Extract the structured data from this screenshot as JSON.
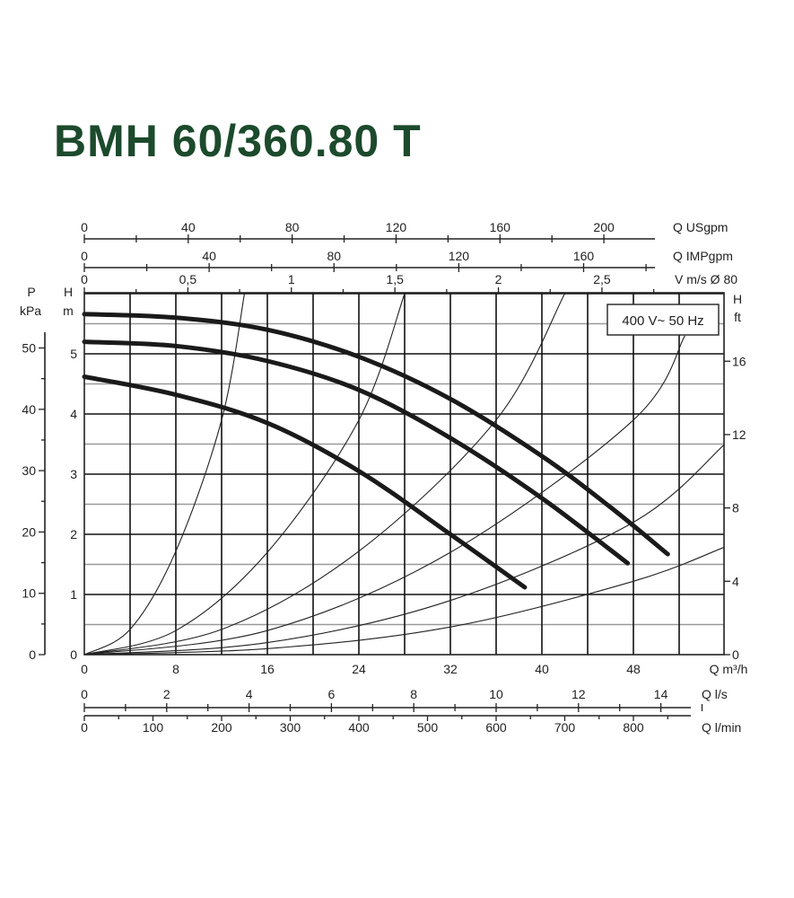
{
  "title": "BMH 60/360.80 T",
  "chart_data": {
    "type": "line",
    "title": "BMH 60/360.80 T",
    "annotation": "400 V~ 50 Hz",
    "x": {
      "label": "Q m³/h",
      "range": [
        0,
        55
      ],
      "ticks": [
        "0",
        "8",
        "16",
        "24",
        "32",
        "40",
        "48"
      ],
      "tick_values": [
        0,
        8,
        16,
        24,
        32,
        40,
        48
      ]
    },
    "y": {
      "label_top": "H",
      "label_bottom": "m",
      "range": [
        0,
        6
      ],
      "ticks": [
        "0",
        "1",
        "2",
        "3",
        "4",
        "5"
      ],
      "tick_values": [
        0,
        1,
        2,
        3,
        4,
        5
      ]
    },
    "pressure_axis": {
      "label_top": "P",
      "label_bottom": "kPa",
      "ticks": [
        "0",
        "10",
        "20",
        "30",
        "40",
        "50"
      ],
      "tick_values": [
        0,
        10,
        20,
        30,
        40,
        50
      ]
    },
    "feet_axis": {
      "label_top": "H",
      "label_bottom": "ft",
      "ticks": [
        "0",
        "4",
        "8",
        "12",
        "16"
      ],
      "tick_values": [
        0,
        4,
        8,
        12,
        16
      ]
    },
    "usgpm_axis": {
      "label": "Q USgpm",
      "ticks": [
        "0",
        "40",
        "80",
        "120",
        "160",
        "200"
      ],
      "tick_values": [
        0,
        40,
        80,
        120,
        160,
        200
      ]
    },
    "impgpm_axis": {
      "label": "Q IMPgpm",
      "ticks": [
        "0",
        "40",
        "80",
        "120",
        "160"
      ],
      "tick_values": [
        0,
        40,
        80,
        120,
        160
      ]
    },
    "velocity_axis": {
      "label": "V m/s Ø 80",
      "ticks": [
        "0",
        "0,5",
        "1",
        "1,5",
        "2",
        "2,5"
      ],
      "tick_values": [
        0,
        0.5,
        1,
        1.5,
        2,
        2.5
      ]
    },
    "ls_axis": {
      "label": "Q l/s",
      "ticks": [
        "0",
        "2",
        "4",
        "6",
        "8",
        "10",
        "12",
        "14"
      ],
      "tick_values": [
        0,
        2,
        4,
        6,
        8,
        10,
        12,
        14
      ]
    },
    "lmin_axis": {
      "label": "Q l/min",
      "ticks": [
        "0",
        "100",
        "200",
        "300",
        "400",
        "500",
        "600",
        "700",
        "800"
      ],
      "tick_values": [
        0,
        100,
        200,
        300,
        400,
        500,
        600,
        700,
        800
      ]
    },
    "pump_curves": [
      {
        "x": [
          0,
          8,
          16,
          24,
          32,
          40,
          46,
          51
        ],
        "y": [
          5.66,
          5.6,
          5.4,
          4.95,
          4.25,
          3.3,
          2.45,
          1.67
        ]
      },
      {
        "x": [
          0,
          8,
          16,
          24,
          32,
          40,
          47.5
        ],
        "y": [
          5.2,
          5.13,
          4.88,
          4.4,
          3.6,
          2.6,
          1.52
        ]
      },
      {
        "x": [
          0,
          8,
          16,
          24,
          32,
          38.5
        ],
        "y": [
          4.62,
          4.32,
          3.85,
          3.05,
          2.0,
          1.12
        ]
      }
    ],
    "system_curves": [
      {
        "x": [
          0,
          4,
          8,
          12,
          14
        ],
        "y": [
          0,
          0.42,
          1.72,
          3.9,
          6.0
        ]
      },
      {
        "x": [
          0,
          8,
          16,
          24,
          28
        ],
        "y": [
          0,
          0.4,
          1.7,
          3.9,
          6.0
        ]
      },
      {
        "x": [
          0,
          12,
          24,
          36,
          42
        ],
        "y": [
          0,
          0.42,
          1.72,
          3.9,
          6.0
        ]
      },
      {
        "x": [
          0,
          16,
          32,
          48,
          52.5
        ],
        "y": [
          0,
          0.4,
          1.7,
          3.9,
          5.3
        ]
      },
      {
        "x": [
          0,
          16,
          32,
          48,
          56
        ],
        "y": [
          0,
          0.2,
          0.9,
          2.2,
          3.5
        ]
      },
      {
        "x": [
          0,
          16,
          32,
          48,
          56
        ],
        "y": [
          0,
          0.1,
          0.46,
          1.22,
          1.79
        ]
      }
    ],
    "grid": true
  }
}
